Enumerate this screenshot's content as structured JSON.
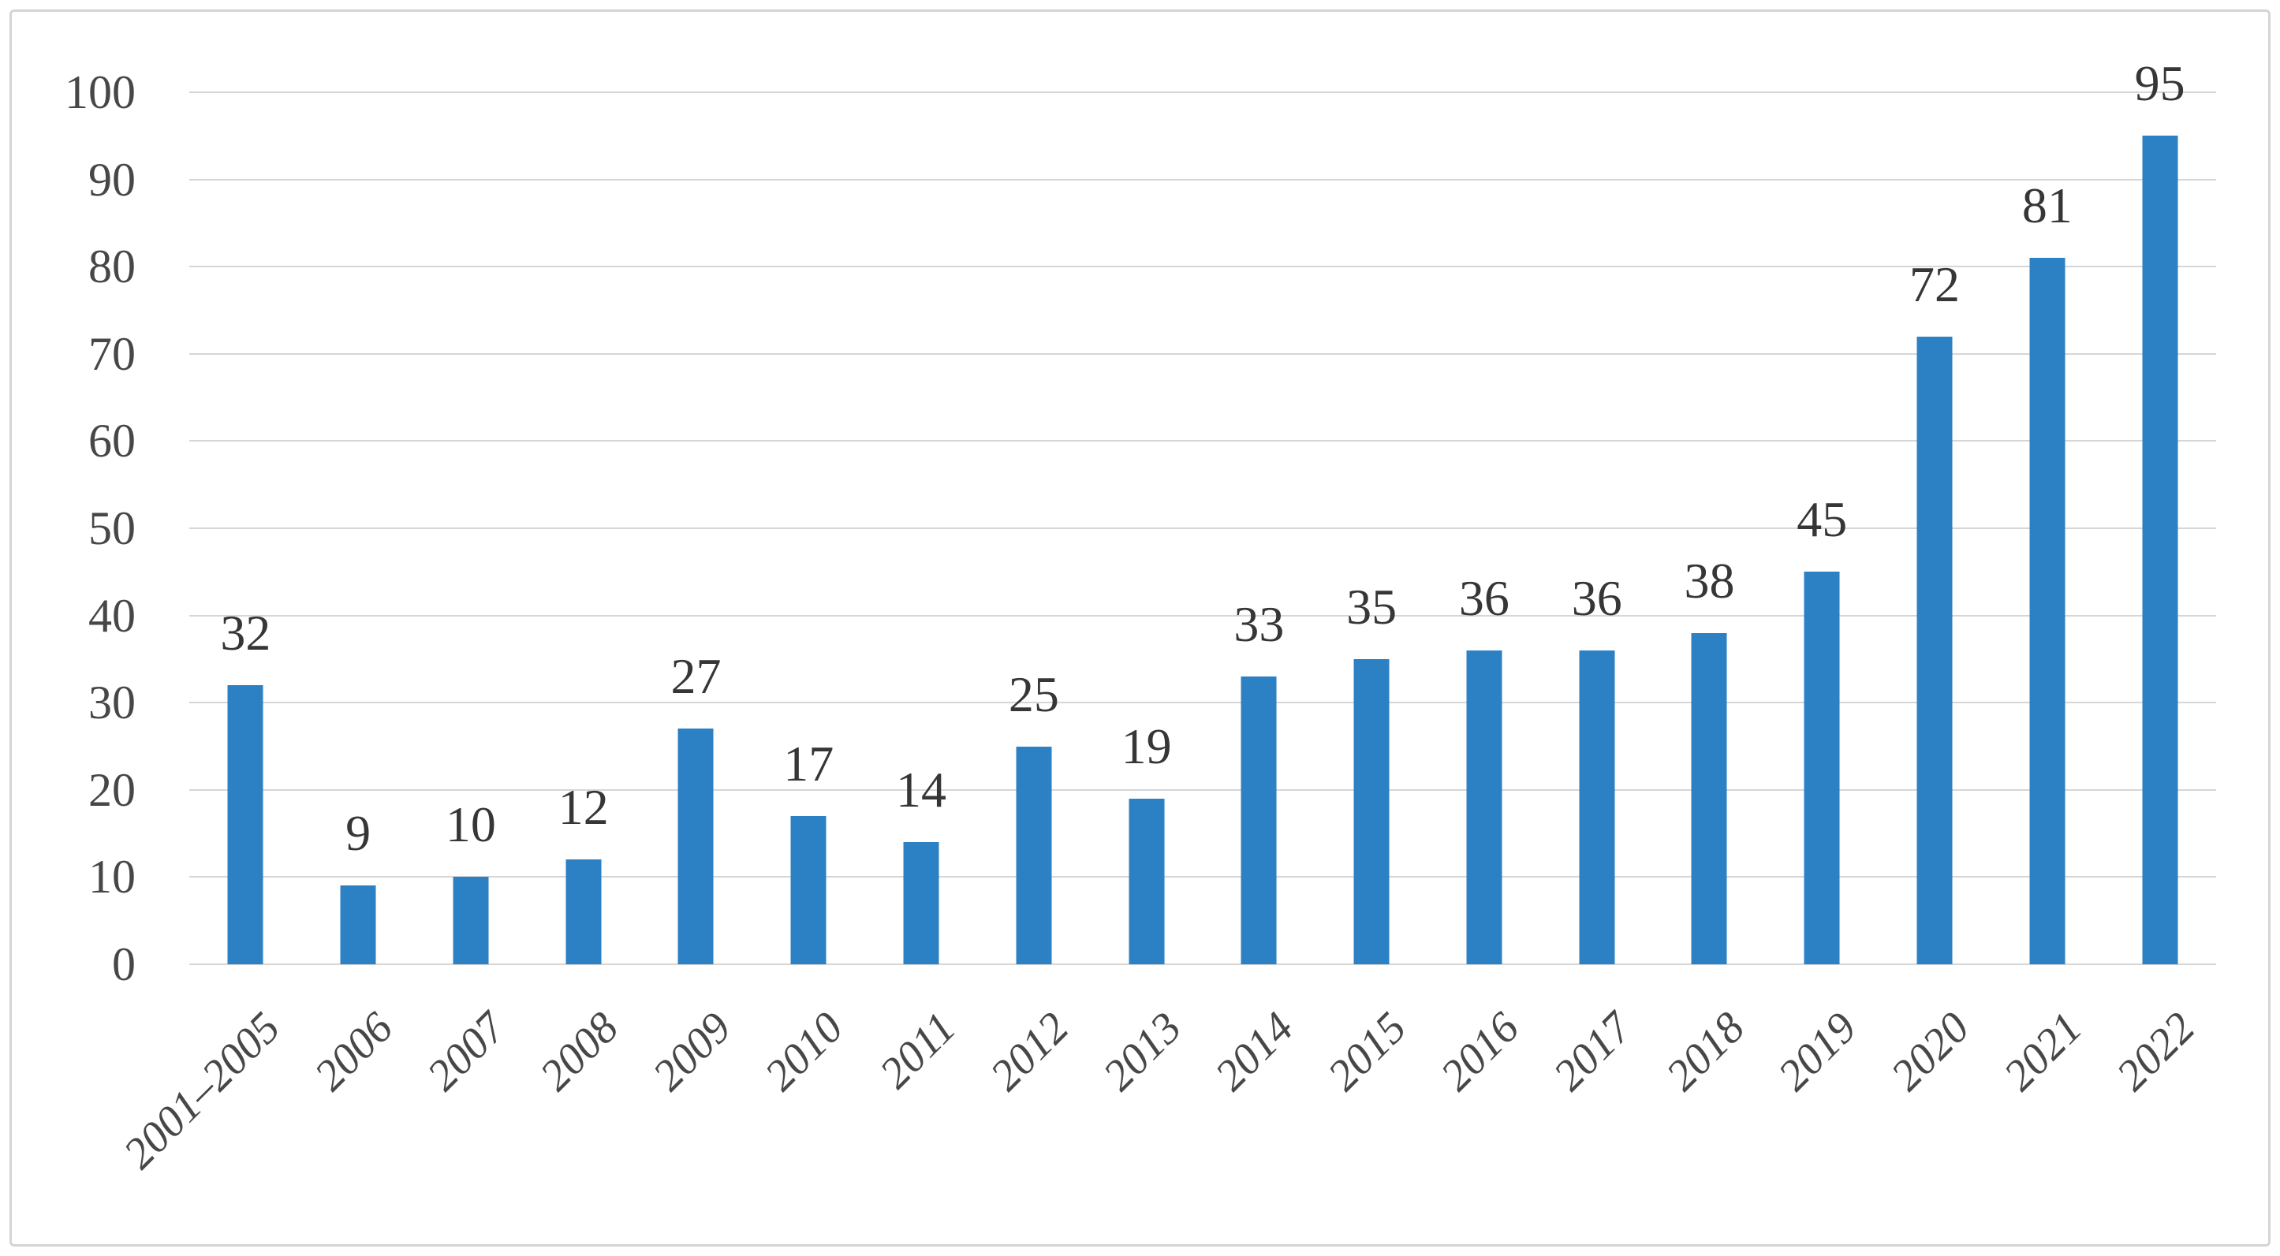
{
  "figure": {
    "background": "#FFFFFF",
    "border_color": "#D4D4D4"
  },
  "chart_data": {
    "type": "bar",
    "categories": [
      "2001–2005",
      "2006",
      "2007",
      "2008",
      "2009",
      "2010",
      "2011",
      "2012",
      "2013",
      "2014",
      "2015",
      "2016",
      "2017",
      "2018",
      "2019",
      "2020",
      "2021",
      "2022"
    ],
    "values": [
      32,
      9,
      10,
      12,
      27,
      17,
      14,
      25,
      19,
      33,
      35,
      36,
      36,
      38,
      45,
      72,
      81,
      95
    ],
    "title": "",
    "xlabel": "",
    "ylabel": "",
    "ylim": [
      0,
      100
    ],
    "yticks": [
      0,
      10,
      20,
      30,
      40,
      50,
      60,
      70,
      80,
      90,
      100
    ],
    "grid": true,
    "legend": false,
    "data_labels_shown": true,
    "x_labels_rotation_deg": 45,
    "bar_color": "#2C80C4",
    "gridline_color": "#D6D6D6",
    "data_label_color": "#363636",
    "axis_text_color": "#474747"
  }
}
